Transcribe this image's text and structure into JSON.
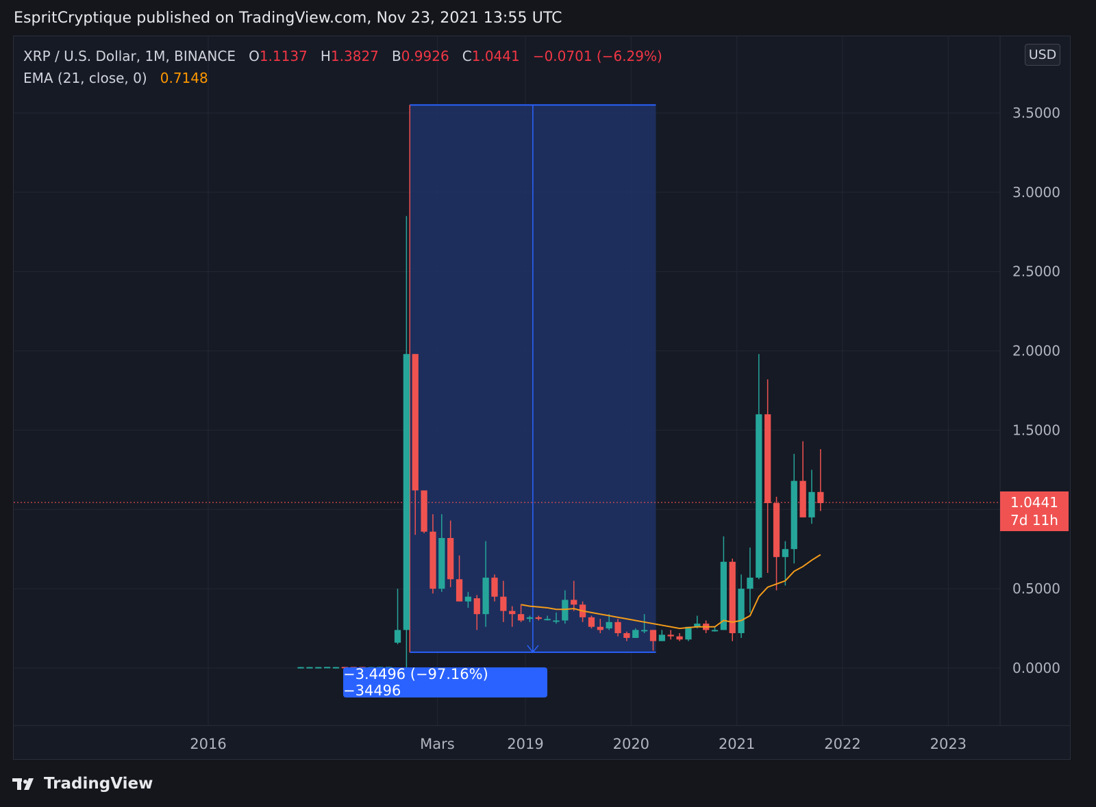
{
  "header": {
    "publish_line": "EspritCryptique published on TradingView.com, Nov 23, 2021 13:55 UTC"
  },
  "legend": {
    "symbol": "XRP / U.S. Dollar, 1M, BINANCE",
    "o_label": "O",
    "o_value": "1.1137",
    "h_label": "H",
    "h_value": "1.3827",
    "b_label": "B",
    "b_value": "0.9926",
    "c_label": "C",
    "c_value": "1.0441",
    "change": "−0.0701 (−6.29%)",
    "ema_label": "EMA (21, close, 0)",
    "ema_value": "0.7148"
  },
  "currency_button": "USD",
  "last_price": {
    "price": "1.0441",
    "countdown": "7d 11h"
  },
  "measure": {
    "label": "−3.4496 (−97.16%) −34496"
  },
  "branding": {
    "name": "TradingView"
  },
  "colors": {
    "up": "#26a69a",
    "down": "#ef5350",
    "ema": "#f59c1a",
    "measure_fill": "#1e3366",
    "measure_line": "#2962ff",
    "background": "#161a25",
    "grid": "#232733"
  },
  "chart_data": {
    "type": "candlestick",
    "title": "XRP / U.S. Dollar, 1M, BINANCE",
    "y_ticks": [
      "3.5000",
      "3.0000",
      "2.5000",
      "2.0000",
      "1.5000",
      "1.0000",
      "0.5000",
      "0.0000"
    ],
    "ylim": [
      -0.35,
      4.1
    ],
    "x_ticks": [
      "2016",
      "Mars",
      "2019",
      "2020",
      "2021",
      "2022",
      "2023"
    ],
    "grid": true,
    "candles": [
      {
        "t": "2016-11",
        "o": 0.006,
        "h": 0.007,
        "l": 0.005,
        "c": 0.006
      },
      {
        "t": "2016-12",
        "o": 0.006,
        "h": 0.007,
        "l": 0.005,
        "c": 0.006
      },
      {
        "t": "2017-01",
        "o": 0.006,
        "h": 0.007,
        "l": 0.005,
        "c": 0.006
      },
      {
        "t": "2017-02",
        "o": 0.006,
        "h": 0.007,
        "l": 0.005,
        "c": 0.007
      },
      {
        "t": "2017-03",
        "o": 0.006,
        "h": 0.007,
        "l": 0.005,
        "c": 0.006
      },
      {
        "t": "2017-04",
        "o": 0.007,
        "h": 0.007,
        "l": 0.006,
        "c": 0.006
      },
      {
        "t": "2017-05",
        "o": 0.007,
        "h": 0.007,
        "l": 0.006,
        "c": 0.006
      },
      {
        "t": "2017-06",
        "o": 0.007,
        "h": 0.007,
        "l": 0.006,
        "c": 0.006
      },
      {
        "t": "2017-07",
        "o": 0.006,
        "h": 0.007,
        "l": 0.005,
        "c": 0.006
      },
      {
        "t": "2017-08",
        "o": 0.006,
        "h": 0.007,
        "l": 0.005,
        "c": 0.007
      },
      {
        "t": "2017-09",
        "o": 0.006,
        "h": 0.007,
        "l": 0.005,
        "c": 0.007
      },
      {
        "t": "2017-10",
        "o": 0.16,
        "h": 0.5,
        "l": 0.15,
        "c": 0.24
      },
      {
        "t": "2017-11",
        "o": 0.24,
        "h": 2.85,
        "l": 0.0,
        "c": 1.98
      },
      {
        "t": "2017-12",
        "o": 1.98,
        "h": 1.98,
        "l": 0.84,
        "c": 1.12
      },
      {
        "t": "2018-01",
        "o": 1.12,
        "h": 1.12,
        "l": 0.85,
        "c": 0.86
      },
      {
        "t": "2018-02",
        "o": 0.86,
        "h": 0.97,
        "l": 0.47,
        "c": 0.5
      },
      {
        "t": "2018-03",
        "o": 0.5,
        "h": 0.97,
        "l": 0.48,
        "c": 0.82
      },
      {
        "t": "2018-04",
        "o": 0.82,
        "h": 0.93,
        "l": 0.51,
        "c": 0.56
      },
      {
        "t": "2018-05",
        "o": 0.56,
        "h": 0.71,
        "l": 0.42,
        "c": 0.42
      },
      {
        "t": "2018-06",
        "o": 0.42,
        "h": 0.48,
        "l": 0.38,
        "c": 0.45
      },
      {
        "t": "2018-07",
        "o": 0.44,
        "h": 0.46,
        "l": 0.24,
        "c": 0.34
      },
      {
        "t": "2018-08",
        "o": 0.34,
        "h": 0.8,
        "l": 0.26,
        "c": 0.57
      },
      {
        "t": "2018-09",
        "o": 0.57,
        "h": 0.59,
        "l": 0.42,
        "c": 0.45
      },
      {
        "t": "2018-10",
        "o": 0.45,
        "h": 0.55,
        "l": 0.29,
        "c": 0.36
      },
      {
        "t": "2018-11",
        "o": 0.36,
        "h": 0.39,
        "l": 0.26,
        "c": 0.34
      },
      {
        "t": "2018-12",
        "o": 0.34,
        "h": 0.4,
        "l": 0.29,
        "c": 0.3
      },
      {
        "t": "2019-01",
        "o": 0.31,
        "h": 0.33,
        "l": 0.29,
        "c": 0.32
      },
      {
        "t": "2019-02",
        "o": 0.32,
        "h": 0.33,
        "l": 0.3,
        "c": 0.31
      },
      {
        "t": "2019-03",
        "o": 0.31,
        "h": 0.33,
        "l": 0.3,
        "c": 0.31
      },
      {
        "t": "2019-04",
        "o": 0.3,
        "h": 0.35,
        "l": 0.28,
        "c": 0.3
      },
      {
        "t": "2019-05",
        "o": 0.3,
        "h": 0.49,
        "l": 0.28,
        "c": 0.43
      },
      {
        "t": "2019-06",
        "o": 0.43,
        "h": 0.55,
        "l": 0.36,
        "c": 0.4
      },
      {
        "t": "2019-07",
        "o": 0.4,
        "h": 0.42,
        "l": 0.29,
        "c": 0.32
      },
      {
        "t": "2019-08",
        "o": 0.32,
        "h": 0.33,
        "l": 0.25,
        "c": 0.26
      },
      {
        "t": "2019-09",
        "o": 0.26,
        "h": 0.31,
        "l": 0.22,
        "c": 0.24
      },
      {
        "t": "2019-10",
        "o": 0.25,
        "h": 0.34,
        "l": 0.24,
        "c": 0.29
      },
      {
        "t": "2019-11",
        "o": 0.29,
        "h": 0.31,
        "l": 0.2,
        "c": 0.22
      },
      {
        "t": "2019-12",
        "o": 0.22,
        "h": 0.23,
        "l": 0.17,
        "c": 0.19
      },
      {
        "t": "2020-01",
        "o": 0.19,
        "h": 0.25,
        "l": 0.19,
        "c": 0.24
      },
      {
        "t": "2020-02",
        "o": 0.24,
        "h": 0.34,
        "l": 0.22,
        "c": 0.24
      },
      {
        "t": "2020-03",
        "o": 0.24,
        "h": 0.24,
        "l": 0.11,
        "c": 0.17
      },
      {
        "t": "2020-04",
        "o": 0.17,
        "h": 0.24,
        "l": 0.17,
        "c": 0.21
      },
      {
        "t": "2020-05",
        "o": 0.21,
        "h": 0.24,
        "l": 0.18,
        "c": 0.2
      },
      {
        "t": "2020-06",
        "o": 0.2,
        "h": 0.22,
        "l": 0.17,
        "c": 0.18
      },
      {
        "t": "2020-07",
        "o": 0.18,
        "h": 0.26,
        "l": 0.17,
        "c": 0.26
      },
      {
        "t": "2020-08",
        "o": 0.26,
        "h": 0.33,
        "l": 0.25,
        "c": 0.28
      },
      {
        "t": "2020-09",
        "o": 0.28,
        "h": 0.3,
        "l": 0.22,
        "c": 0.24
      },
      {
        "t": "2020-10",
        "o": 0.24,
        "h": 0.26,
        "l": 0.23,
        "c": 0.24
      },
      {
        "t": "2020-11",
        "o": 0.24,
        "h": 0.83,
        "l": 0.24,
        "c": 0.67
      },
      {
        "t": "2020-12",
        "o": 0.67,
        "h": 0.69,
        "l": 0.17,
        "c": 0.22
      },
      {
        "t": "2021-01",
        "o": 0.22,
        "h": 0.59,
        "l": 0.19,
        "c": 0.5
      },
      {
        "t": "2021-02",
        "o": 0.5,
        "h": 0.76,
        "l": 0.35,
        "c": 0.57
      },
      {
        "t": "2021-03",
        "o": 0.57,
        "h": 1.98,
        "l": 0.56,
        "c": 1.6
      },
      {
        "t": "2021-04",
        "o": 1.6,
        "h": 1.82,
        "l": 0.6,
        "c": 1.04
      },
      {
        "t": "2021-05",
        "o": 1.04,
        "h": 1.08,
        "l": 0.49,
        "c": 0.7
      },
      {
        "t": "2021-06",
        "o": 0.7,
        "h": 0.8,
        "l": 0.52,
        "c": 0.75
      },
      {
        "t": "2021-07",
        "o": 0.75,
        "h": 1.35,
        "l": 0.66,
        "c": 1.18
      },
      {
        "t": "2021-08",
        "o": 1.18,
        "h": 1.43,
        "l": 0.96,
        "c": 0.95
      },
      {
        "t": "2021-09",
        "o": 0.95,
        "h": 1.25,
        "l": 0.91,
        "c": 1.11
      },
      {
        "t": "2021-10",
        "o": 1.11,
        "h": 1.38,
        "l": 0.99,
        "c": 1.04
      }
    ],
    "ema21": [
      {
        "t": "2018-12",
        "v": 0.4
      },
      {
        "t": "2019-01",
        "v": 0.39
      },
      {
        "t": "2019-02",
        "v": 0.385
      },
      {
        "t": "2019-03",
        "v": 0.38
      },
      {
        "t": "2019-04",
        "v": 0.37
      },
      {
        "t": "2019-05",
        "v": 0.37
      },
      {
        "t": "2019-06",
        "v": 0.375
      },
      {
        "t": "2019-07",
        "v": 0.36
      },
      {
        "t": "2019-08",
        "v": 0.35
      },
      {
        "t": "2019-09",
        "v": 0.34
      },
      {
        "t": "2019-10",
        "v": 0.33
      },
      {
        "t": "2019-11",
        "v": 0.32
      },
      {
        "t": "2019-12",
        "v": 0.31
      },
      {
        "t": "2020-01",
        "v": 0.3
      },
      {
        "t": "2020-02",
        "v": 0.29
      },
      {
        "t": "2020-03",
        "v": 0.28
      },
      {
        "t": "2020-04",
        "v": 0.27
      },
      {
        "t": "2020-05",
        "v": 0.26
      },
      {
        "t": "2020-06",
        "v": 0.25
      },
      {
        "t": "2020-07",
        "v": 0.255
      },
      {
        "t": "2020-08",
        "v": 0.26
      },
      {
        "t": "2020-09",
        "v": 0.26
      },
      {
        "t": "2020-10",
        "v": 0.26
      },
      {
        "t": "2020-11",
        "v": 0.3
      },
      {
        "t": "2020-12",
        "v": 0.29
      },
      {
        "t": "2021-01",
        "v": 0.3
      },
      {
        "t": "2021-02",
        "v": 0.33
      },
      {
        "t": "2021-03",
        "v": 0.45
      },
      {
        "t": "2021-04",
        "v": 0.51
      },
      {
        "t": "2021-05",
        "v": 0.53
      },
      {
        "t": "2021-06",
        "v": 0.55
      },
      {
        "t": "2021-07",
        "v": 0.61
      },
      {
        "t": "2021-08",
        "v": 0.64
      },
      {
        "t": "2021-09",
        "v": 0.68
      },
      {
        "t": "2021-10",
        "v": 0.7148
      }
    ],
    "last_price": 1.0441,
    "measure": {
      "from": "2017-12",
      "to": "2020-03",
      "high": 3.55,
      "low": 0.1
    },
    "legend_position": "top-left"
  }
}
